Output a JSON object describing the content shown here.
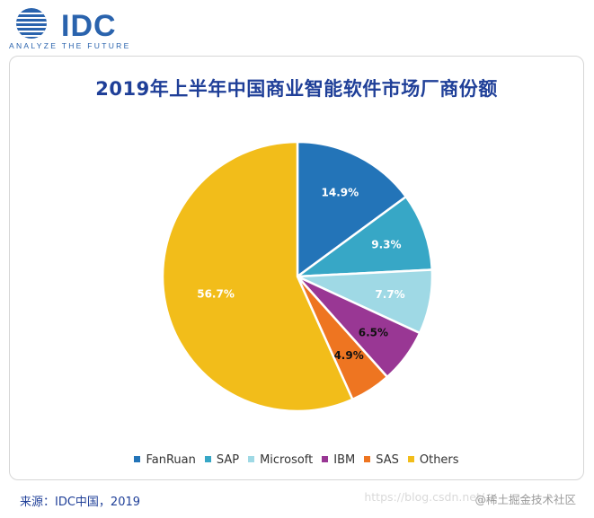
{
  "logo": {
    "name": "IDC",
    "tagline": "ANALYZE THE FUTURE",
    "color": "#2a63ad"
  },
  "source": "来源：IDC中国，2019",
  "watermark": {
    "url": "https://blog.csdn.net/...",
    "credit": "@稀土掘金技术社区"
  },
  "chart_data": {
    "type": "pie",
    "title": "2019年上半年中国商业智能软件市场厂商份额",
    "legend_position": "bottom",
    "slices": [
      {
        "label": "FanRuan",
        "value": 14.9,
        "value_label": "14.9%",
        "color": "#2374b8"
      },
      {
        "label": "SAP",
        "value": 9.3,
        "value_label": "9.3%",
        "color": "#37a7c6"
      },
      {
        "label": "Microsoft",
        "value": 7.7,
        "value_label": "7.7%",
        "color": "#9fd9e5"
      },
      {
        "label": "IBM",
        "value": 6.5,
        "value_label": "6.5%",
        "color": "#993794"
      },
      {
        "label": "SAS",
        "value": 4.9,
        "value_label": "4.9%",
        "color": "#ee7521"
      },
      {
        "label": "Others",
        "value": 56.7,
        "value_label": "56.7%",
        "color": "#f2bd1a"
      }
    ]
  }
}
